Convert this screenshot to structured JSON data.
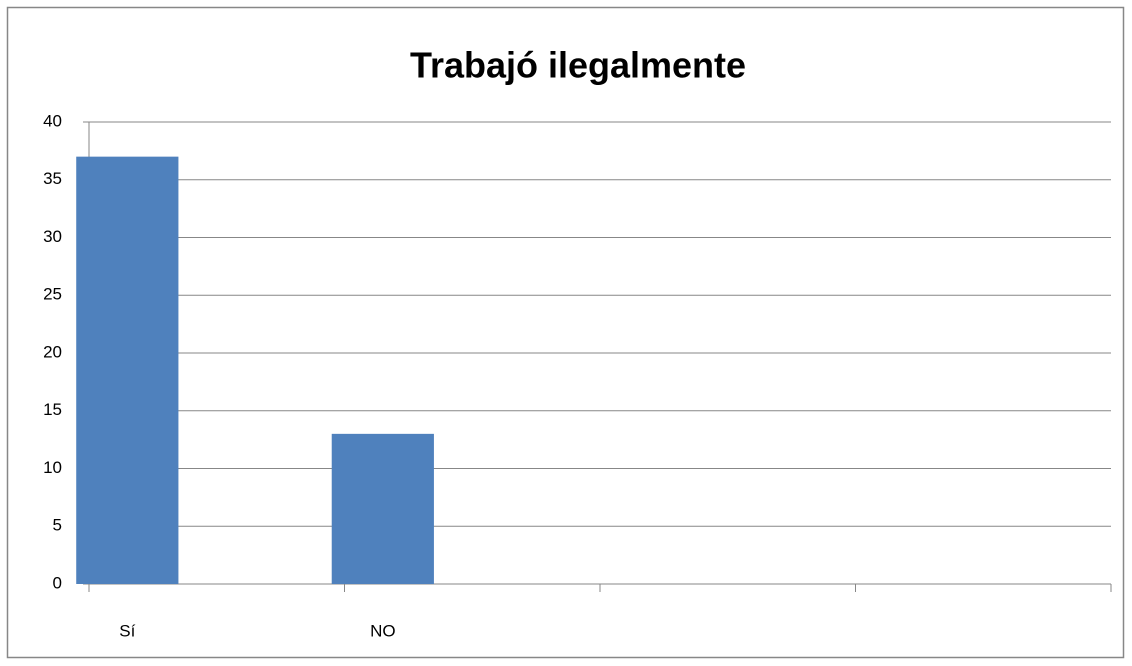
{
  "chart_data": {
    "type": "bar",
    "title": "Trabajó ilegalmente",
    "categories": [
      "Sí",
      "NO",
      null,
      null
    ],
    "values": [
      37,
      13,
      null,
      null
    ],
    "color": "#4f81bd",
    "ylim": [
      0,
      40
    ],
    "yticks": [
      0,
      5,
      10,
      15,
      20,
      25,
      30,
      35,
      40
    ],
    "grid": true
  }
}
